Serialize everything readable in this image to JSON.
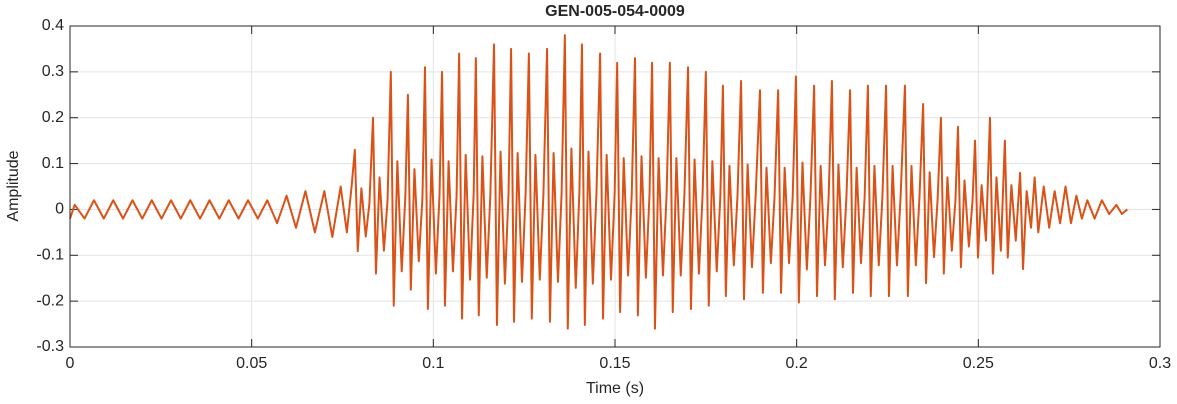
{
  "chart_data": {
    "type": "line",
    "title": "GEN-005-054-0009",
    "x_label": "Time (s)",
    "y_label": "Amplitude",
    "xlim": [
      0,
      0.3
    ],
    "ylim": [
      -0.3,
      0.4
    ],
    "xticks": [
      0,
      0.05,
      0.1,
      0.15,
      0.2,
      0.25,
      0.3
    ],
    "yticks": [
      -0.3,
      -0.2,
      -0.1,
      0,
      0.1,
      0.2,
      0.3,
      0.4
    ],
    "grid": true,
    "x": [
      0,
      0.0013,
      0.004,
      0.0066,
      0.0093,
      0.0119,
      0.0146,
      0.0172,
      0.0199,
      0.0225,
      0.0252,
      0.0278,
      0.0305,
      0.0331,
      0.0358,
      0.0384,
      0.0411,
      0.0437,
      0.0464,
      0.049,
      0.0517,
      0.0543,
      0.057,
      0.0596,
      0.0622,
      0.0648,
      0.0674,
      0.07,
      0.0722,
      0.0745,
      0.0762,
      0.0775,
      0.0784,
      0.0792,
      0.0802,
      0.0814,
      0.0824,
      0.0834,
      0.0842,
      0.0852,
      0.0864,
      0.0874,
      0.0883,
      0.0891,
      0.0901,
      0.0913,
      0.0923,
      0.093,
      0.0938,
      0.0948,
      0.096,
      0.097,
      0.0977,
      0.0985,
      0.0995,
      0.1007,
      0.1017,
      0.1024,
      0.1032,
      0.1042,
      0.1054,
      0.1064,
      0.1071,
      0.1079,
      0.1089,
      0.1101,
      0.1111,
      0.1117,
      0.1125,
      0.1135,
      0.1147,
      0.1157,
      0.1167,
      0.1175,
      0.1185,
      0.1197,
      0.1207,
      0.1214,
      0.1222,
      0.1232,
      0.1244,
      0.1254,
      0.1263,
      0.1271,
      0.1281,
      0.1293,
      0.1303,
      0.1313,
      0.1321,
      0.1331,
      0.1343,
      0.1353,
      0.1362,
      0.137,
      0.138,
      0.1392,
      0.1402,
      0.1409,
      0.1417,
      0.1427,
      0.1439,
      0.1449,
      0.1459,
      0.1467,
      0.1477,
      0.1489,
      0.1499,
      0.1506,
      0.1514,
      0.1524,
      0.1536,
      0.1546,
      0.1555,
      0.1563,
      0.1573,
      0.1585,
      0.1595,
      0.1602,
      0.161,
      0.162,
      0.1632,
      0.1642,
      0.1651,
      0.1659,
      0.1669,
      0.1681,
      0.1691,
      0.1701,
      0.1709,
      0.1719,
      0.1731,
      0.1741,
      0.175,
      0.1758,
      0.1768,
      0.178,
      0.179,
      0.1797,
      0.1805,
      0.1815,
      0.1827,
      0.1837,
      0.1847,
      0.1855,
      0.1865,
      0.1877,
      0.1887,
      0.1899,
      0.1907,
      0.1917,
      0.1929,
      0.1939,
      0.1949,
      0.1957,
      0.1967,
      0.1979,
      0.1989,
      0.1998,
      0.2006,
      0.2016,
      0.2028,
      0.2038,
      0.2048,
      0.2056,
      0.2066,
      0.2078,
      0.2088,
      0.2097,
      0.2105,
      0.2115,
      0.2127,
      0.2137,
      0.2147,
      0.2155,
      0.2165,
      0.2177,
      0.2187,
      0.2196,
      0.2204,
      0.2214,
      0.2226,
      0.2236,
      0.2246,
      0.2254,
      0.2264,
      0.2276,
      0.2286,
      0.2298,
      0.2306,
      0.2316,
      0.2328,
      0.2338,
      0.2348,
      0.2356,
      0.2366,
      0.2378,
      0.2388,
      0.2397,
      0.2405,
      0.2415,
      0.2427,
      0.2437,
      0.2444,
      0.2452,
      0.2462,
      0.2474,
      0.2484,
      0.2491,
      0.2499,
      0.2509,
      0.2521,
      0.2532,
      0.254,
      0.255,
      0.2562,
      0.2573,
      0.2581,
      0.2591,
      0.2603,
      0.2615,
      0.2623,
      0.2633,
      0.2645,
      0.2655,
      0.2665,
      0.268,
      0.2695,
      0.271,
      0.2725,
      0.274,
      0.2755,
      0.277,
      0.2785,
      0.28,
      0.282,
      0.284,
      0.286,
      0.288,
      0.2895,
      0.291
    ],
    "series": [
      {
        "name": "Amplitude",
        "color": "#D95319",
        "values": [
          -0.02,
          0.01,
          -0.02,
          0.02,
          -0.02,
          0.02,
          -0.02,
          0.02,
          -0.02,
          0.02,
          -0.02,
          0.02,
          -0.02,
          0.02,
          -0.02,
          0.02,
          -0.02,
          0.02,
          -0.02,
          0.02,
          -0.02,
          0.02,
          -0.03,
          0.03,
          -0.04,
          0.04,
          -0.05,
          0.04,
          -0.06,
          0.05,
          -0.05,
          0.05,
          0.13,
          -0.091,
          0.046,
          -0.059,
          0.013,
          0.2,
          -0.14,
          0.07,
          -0.09,
          0.02,
          0.3,
          -0.21,
          0.105,
          -0.135,
          0.03,
          0.25,
          -0.175,
          0.088,
          -0.113,
          0.025,
          0.31,
          -0.217,
          0.109,
          -0.14,
          0.031,
          0.3,
          -0.21,
          0.105,
          -0.135,
          0.03,
          0.34,
          -0.238,
          0.119,
          -0.153,
          0.034,
          0.33,
          -0.231,
          0.116,
          -0.149,
          0.033,
          0.36,
          -0.252,
          0.126,
          -0.162,
          0.036,
          0.35,
          -0.245,
          0.123,
          -0.158,
          0.035,
          0.34,
          -0.238,
          0.119,
          -0.153,
          0.034,
          0.35,
          -0.245,
          0.123,
          -0.158,
          0.035,
          0.38,
          -0.26,
          0.133,
          -0.171,
          0.038,
          0.36,
          -0.252,
          0.126,
          -0.162,
          0.036,
          0.34,
          -0.238,
          0.119,
          -0.153,
          0.034,
          0.32,
          -0.224,
          0.112,
          -0.144,
          0.032,
          0.33,
          -0.231,
          0.116,
          -0.149,
          0.033,
          0.32,
          -0.26,
          0.112,
          -0.144,
          0.032,
          0.32,
          -0.224,
          0.112,
          -0.144,
          0.032,
          0.31,
          -0.217,
          0.109,
          -0.14,
          0.031,
          0.3,
          -0.21,
          0.105,
          -0.135,
          0.03,
          0.27,
          -0.189,
          0.095,
          -0.122,
          0.027,
          0.28,
          -0.196,
          0.098,
          -0.126,
          0.028,
          0.26,
          -0.182,
          0.091,
          -0.117,
          0.026,
          0.26,
          -0.182,
          0.091,
          -0.117,
          0.026,
          0.29,
          -0.203,
          0.102,
          -0.131,
          0.029,
          0.27,
          -0.189,
          0.095,
          -0.122,
          0.027,
          0.28,
          -0.196,
          0.098,
          -0.126,
          0.028,
          0.26,
          -0.182,
          0.091,
          -0.117,
          0.026,
          0.27,
          -0.189,
          0.095,
          -0.122,
          0.027,
          0.27,
          -0.189,
          0.095,
          -0.122,
          0.027,
          0.27,
          -0.189,
          0.095,
          -0.122,
          0.027,
          0.23,
          -0.161,
          0.081,
          -0.104,
          0.023,
          0.2,
          -0.14,
          0.07,
          -0.09,
          0.02,
          0.18,
          -0.126,
          0.063,
          -0.081,
          0.018,
          0.15,
          -0.105,
          0.053,
          -0.068,
          0.2,
          -0.14,
          0.07,
          -0.09,
          0.15,
          -0.105,
          0.053,
          -0.068,
          0.08,
          -0.13,
          0.04,
          -0.04,
          0.07,
          -0.05,
          0.05,
          -0.04,
          0.04,
          -0.03,
          0.05,
          -0.03,
          0.03,
          -0.02,
          0.02,
          -0.02,
          0.02,
          -0.01,
          0.01,
          -0.01,
          0
        ]
      }
    ]
  }
}
